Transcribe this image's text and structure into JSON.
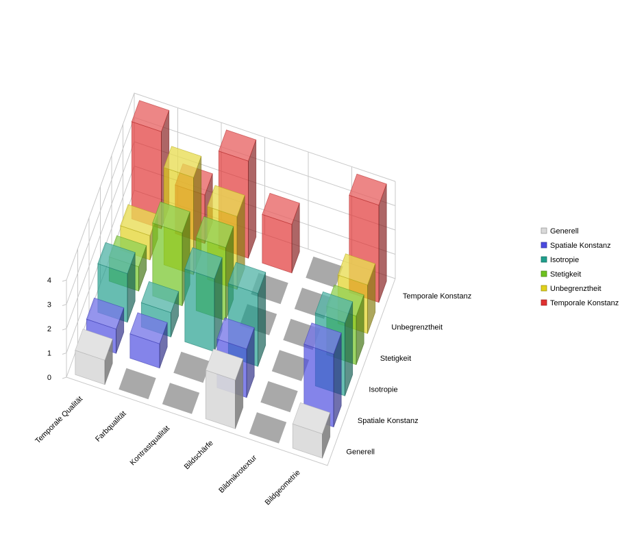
{
  "chart_data": {
    "type": "bar3d",
    "categories": [
      "Bildgeometrie",
      "Bildmikrotextur",
      "Bildschärfe",
      "Kontrastqualität",
      "Farbqualität",
      "Temporale Qualität"
    ],
    "series": [
      {
        "name": "Generell",
        "color": "#d9d9d9",
        "values": [
          1,
          0,
          2,
          0,
          0,
          1
        ]
      },
      {
        "name": "Spatiale Konstanz",
        "color": "#4a4ae0",
        "values": [
          3,
          0,
          2,
          0,
          1,
          1
        ]
      },
      {
        "name": "Isotropie",
        "color": "#1f9e8c",
        "values": [
          3,
          0,
          3,
          3,
          1,
          2
        ]
      },
      {
        "name": "Stetigkeit",
        "color": "#6ec21e",
        "values": [
          2,
          0,
          0,
          3,
          3,
          1
        ]
      },
      {
        "name": "Unbegrenztheit",
        "color": "#e0d01a",
        "values": [
          2,
          0,
          0,
          3,
          4,
          1
        ]
      },
      {
        "name": "Temporale Konstanz",
        "color": "#e03030",
        "values": [
          4,
          0,
          2,
          4,
          2,
          4
        ]
      }
    ],
    "zlim": [
      0,
      4
    ],
    "zticks": [
      0,
      1,
      2,
      3,
      4
    ],
    "grid": true,
    "legend_position": "right"
  },
  "colors": {
    "grid": "#c8c8c8",
    "empty_tile": "#9a9a9a"
  }
}
